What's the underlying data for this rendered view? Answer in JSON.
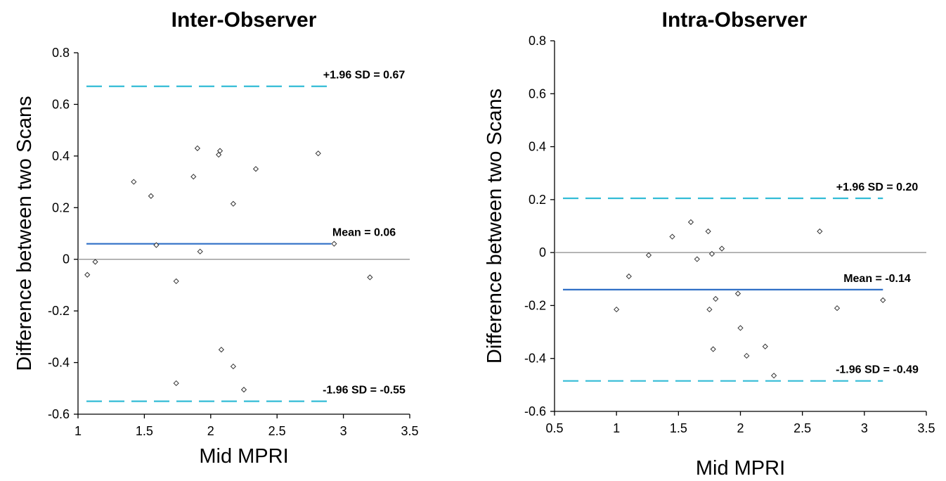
{
  "chart_data": [
    {
      "type": "scatter",
      "title": "Inter-Observer",
      "xlabel": "Mid MPRI",
      "ylabel": "Difference between two Scans",
      "xlim": [
        1,
        3.5
      ],
      "ylim": [
        -0.6,
        0.8
      ],
      "xticks": [
        "1",
        "1.5",
        "2",
        "2.5",
        "3",
        "3.5"
      ],
      "yticks": [
        "0.8",
        "0.6",
        "0.4",
        "0.2",
        "0",
        "-0.2",
        "-0.4",
        "-0.6"
      ],
      "grid": false,
      "points": {
        "x": [
          1.07,
          1.13,
          1.42,
          1.55,
          1.59,
          1.74,
          1.74,
          1.87,
          1.9,
          1.92,
          2.06,
          2.07,
          2.08,
          2.17,
          2.17,
          2.25,
          2.34,
          2.81,
          2.93,
          3.2
        ],
        "y": [
          -0.06,
          -0.01,
          0.3,
          0.245,
          0.055,
          -0.085,
          -0.48,
          0.32,
          0.43,
          0.03,
          0.405,
          0.42,
          -0.35,
          0.215,
          -0.415,
          -0.505,
          0.35,
          0.41,
          0.06,
          -0.07
        ]
      },
      "reference_lines": [
        {
          "kind": "upper",
          "y": 0.67,
          "label": "+1.96 SD = 0.67"
        },
        {
          "kind": "mean",
          "y": 0.06,
          "label": "Mean = 0.06"
        },
        {
          "kind": "lower",
          "y": -0.55,
          "label": "-1.96 SD = -0.55"
        }
      ]
    },
    {
      "type": "scatter",
      "title": "Intra-Observer",
      "xlabel": "Mid MPRI",
      "ylabel": "Difference between two Scans",
      "xlim": [
        0.5,
        3.5
      ],
      "ylim": [
        -0.6,
        0.8
      ],
      "xticks": [
        "0.5",
        "1",
        "1.5",
        "2",
        "2.5",
        "3",
        "3.5"
      ],
      "yticks": [
        "0.8",
        "0.6",
        "0.4",
        "0.2",
        "0",
        "-0.2",
        "-0.4",
        "-0.6"
      ],
      "grid": false,
      "points": {
        "x": [
          1.0,
          1.1,
          1.26,
          1.45,
          1.6,
          1.65,
          1.74,
          1.75,
          1.77,
          1.78,
          1.8,
          1.85,
          1.98,
          2.0,
          2.05,
          2.2,
          2.27,
          2.64,
          2.78,
          3.15
        ],
        "y": [
          -0.215,
          -0.09,
          -0.01,
          0.06,
          0.115,
          -0.025,
          0.08,
          -0.215,
          -0.005,
          -0.365,
          -0.175,
          0.015,
          -0.155,
          -0.285,
          -0.39,
          -0.355,
          -0.465,
          0.08,
          -0.21,
          -0.18
        ]
      },
      "reference_lines": [
        {
          "kind": "upper",
          "y": 0.205,
          "label": "+1.96 SD = 0.20"
        },
        {
          "kind": "mean",
          "y": -0.14,
          "label": "Mean = -0.14"
        },
        {
          "kind": "lower",
          "y": -0.485,
          "label": "-1.96 SD = -0.49"
        }
      ]
    }
  ]
}
